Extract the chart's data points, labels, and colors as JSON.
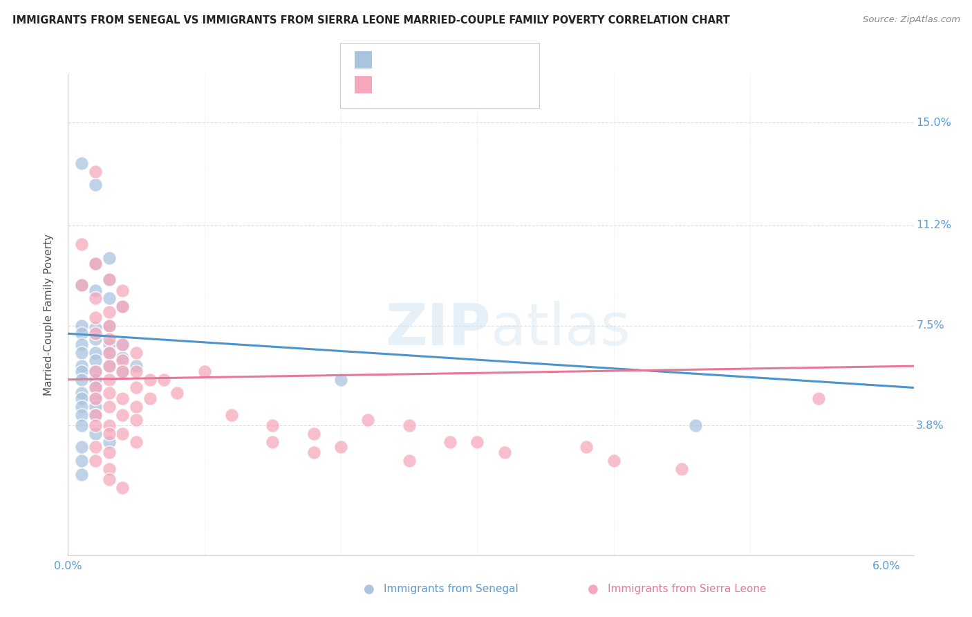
{
  "title": "IMMIGRANTS FROM SENEGAL VS IMMIGRANTS FROM SIERRA LEONE MARRIED-COUPLE FAMILY POVERTY CORRELATION CHART",
  "source": "Source: ZipAtlas.com",
  "ylabel": "Married-Couple Family Poverty",
  "ytick_values": [
    0.038,
    0.075,
    0.112,
    0.15
  ],
  "ytick_labels": [
    "3.8%",
    "7.5%",
    "11.2%",
    "15.0%"
  ],
  "xlim": [
    0.0,
    0.062
  ],
  "ylim": [
    -0.01,
    0.168
  ],
  "color_senegal": "#aac4e0",
  "color_sierra": "#f5a8bc",
  "color_senegal_line": "#4d94cc",
  "color_sierra_line": "#e87898",
  "color_axis": "#5b9bd5",
  "watermark_color": "#c8dff0",
  "legend_box_edge": "#cccccc",
  "grid_color": "#dddddd",
  "senegal_points": [
    [
      0.001,
      0.135
    ],
    [
      0.002,
      0.127
    ],
    [
      0.003,
      0.092
    ],
    [
      0.003,
      0.085
    ],
    [
      0.001,
      0.09
    ],
    [
      0.002,
      0.088
    ],
    [
      0.003,
      0.1
    ],
    [
      0.002,
      0.098
    ],
    [
      0.003,
      0.075
    ],
    [
      0.004,
      0.082
    ],
    [
      0.001,
      0.075
    ],
    [
      0.002,
      0.074
    ],
    [
      0.001,
      0.072
    ],
    [
      0.002,
      0.07
    ],
    [
      0.003,
      0.068
    ],
    [
      0.003,
      0.065
    ],
    [
      0.004,
      0.068
    ],
    [
      0.004,
      0.063
    ],
    [
      0.003,
      0.06
    ],
    [
      0.004,
      0.058
    ],
    [
      0.001,
      0.068
    ],
    [
      0.001,
      0.065
    ],
    [
      0.002,
      0.065
    ],
    [
      0.002,
      0.062
    ],
    [
      0.001,
      0.06
    ],
    [
      0.001,
      0.058
    ],
    [
      0.002,
      0.058
    ],
    [
      0.002,
      0.055
    ],
    [
      0.001,
      0.055
    ],
    [
      0.002,
      0.052
    ],
    [
      0.001,
      0.05
    ],
    [
      0.002,
      0.048
    ],
    [
      0.001,
      0.048
    ],
    [
      0.001,
      0.045
    ],
    [
      0.002,
      0.045
    ],
    [
      0.002,
      0.042
    ],
    [
      0.001,
      0.042
    ],
    [
      0.001,
      0.038
    ],
    [
      0.002,
      0.035
    ],
    [
      0.003,
      0.032
    ],
    [
      0.001,
      0.03
    ],
    [
      0.001,
      0.025
    ],
    [
      0.001,
      0.02
    ],
    [
      0.005,
      0.06
    ],
    [
      0.02,
      0.055
    ],
    [
      0.046,
      0.038
    ]
  ],
  "sierra_points": [
    [
      0.002,
      0.132
    ],
    [
      0.001,
      0.105
    ],
    [
      0.002,
      0.098
    ],
    [
      0.003,
      0.092
    ],
    [
      0.004,
      0.088
    ],
    [
      0.001,
      0.09
    ],
    [
      0.002,
      0.085
    ],
    [
      0.003,
      0.08
    ],
    [
      0.004,
      0.082
    ],
    [
      0.002,
      0.078
    ],
    [
      0.003,
      0.075
    ],
    [
      0.002,
      0.072
    ],
    [
      0.003,
      0.07
    ],
    [
      0.004,
      0.068
    ],
    [
      0.005,
      0.065
    ],
    [
      0.003,
      0.065
    ],
    [
      0.004,
      0.062
    ],
    [
      0.003,
      0.06
    ],
    [
      0.004,
      0.058
    ],
    [
      0.005,
      0.058
    ],
    [
      0.006,
      0.055
    ],
    [
      0.002,
      0.058
    ],
    [
      0.003,
      0.055
    ],
    [
      0.002,
      0.052
    ],
    [
      0.003,
      0.05
    ],
    [
      0.004,
      0.048
    ],
    [
      0.005,
      0.045
    ],
    [
      0.002,
      0.048
    ],
    [
      0.003,
      0.045
    ],
    [
      0.004,
      0.042
    ],
    [
      0.005,
      0.04
    ],
    [
      0.002,
      0.042
    ],
    [
      0.003,
      0.038
    ],
    [
      0.004,
      0.035
    ],
    [
      0.005,
      0.032
    ],
    [
      0.002,
      0.038
    ],
    [
      0.003,
      0.035
    ],
    [
      0.002,
      0.03
    ],
    [
      0.003,
      0.028
    ],
    [
      0.002,
      0.025
    ],
    [
      0.003,
      0.022
    ],
    [
      0.003,
      0.018
    ],
    [
      0.004,
      0.015
    ],
    [
      0.005,
      0.052
    ],
    [
      0.006,
      0.048
    ],
    [
      0.007,
      0.055
    ],
    [
      0.008,
      0.05
    ],
    [
      0.01,
      0.058
    ],
    [
      0.012,
      0.042
    ],
    [
      0.015,
      0.038
    ],
    [
      0.018,
      0.035
    ],
    [
      0.022,
      0.04
    ],
    [
      0.025,
      0.038
    ],
    [
      0.028,
      0.032
    ],
    [
      0.015,
      0.032
    ],
    [
      0.018,
      0.028
    ],
    [
      0.02,
      0.03
    ],
    [
      0.025,
      0.025
    ],
    [
      0.03,
      0.032
    ],
    [
      0.032,
      0.028
    ],
    [
      0.038,
      0.03
    ],
    [
      0.04,
      0.025
    ],
    [
      0.045,
      0.022
    ],
    [
      0.055,
      0.048
    ]
  ]
}
